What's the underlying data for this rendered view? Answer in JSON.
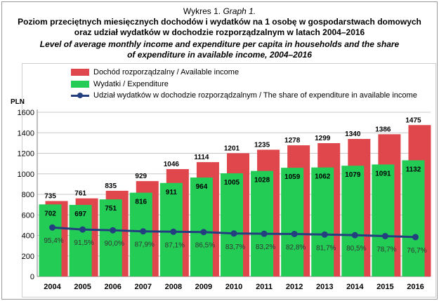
{
  "titles": {
    "line1_pl": "Wykres 1.",
    "line1_en": "Graph 1.",
    "line2": "Poziom przeciętnych miesięcznych dochodów i wydatków na 1 osobę w gospodarstwach domowych",
    "line3": "oraz udział wydatków w dochodzie rozporządzalnym w latach 2004–2016",
    "line4": "Level of average monthly income and expenditure per capita in households and the share",
    "line5": "of expenditure in available income, 2004–2016"
  },
  "colors": {
    "income": "#e0474c",
    "expenditure": "#22cc55",
    "share_line": "#243f80"
  },
  "chart_data": {
    "type": "bar",
    "categories": [
      "2004",
      "2005",
      "2006",
      "2007",
      "2008",
      "2009",
      "2010",
      "2011",
      "2012",
      "2013",
      "2014",
      "2015",
      "2016"
    ],
    "series": [
      {
        "name": "Dochód rozporządzalny / Available income",
        "values": [
          735,
          761,
          835,
          929,
          1046,
          1114,
          1201,
          1235,
          1278,
          1299,
          1340,
          1386,
          1475
        ]
      },
      {
        "name": "Wydatki / Expenditure",
        "values": [
          702,
          697,
          751,
          816,
          911,
          964,
          1005,
          1028,
          1059,
          1062,
          1079,
          1091,
          1132
        ]
      },
      {
        "name": "Udział wydatków w dochodzie rozporządzalnym / The share of expenditure in available income",
        "type": "line",
        "values": [
          95.4,
          91.5,
          90.0,
          87.9,
          87.1,
          86.5,
          83.7,
          83.2,
          82.8,
          81.7,
          80.5,
          78.7,
          76.7
        ],
        "labels": [
          "95,4%",
          "91,5%",
          "90,0%",
          "87,9%",
          "87,1%",
          "86,5%",
          "83,7%",
          "83,2%",
          "82,8%",
          "81,7%",
          "80,5%",
          "78,7%",
          "76,7%"
        ]
      }
    ],
    "ylabel": "PLN",
    "ylim": [
      0,
      1600
    ],
    "yticks": [
      0,
      200,
      400,
      600,
      800,
      1000,
      1200,
      1400,
      1600
    ],
    "share_scale_pct": [
      0,
      1600
    ],
    "grid": true,
    "legend": "top-left"
  }
}
